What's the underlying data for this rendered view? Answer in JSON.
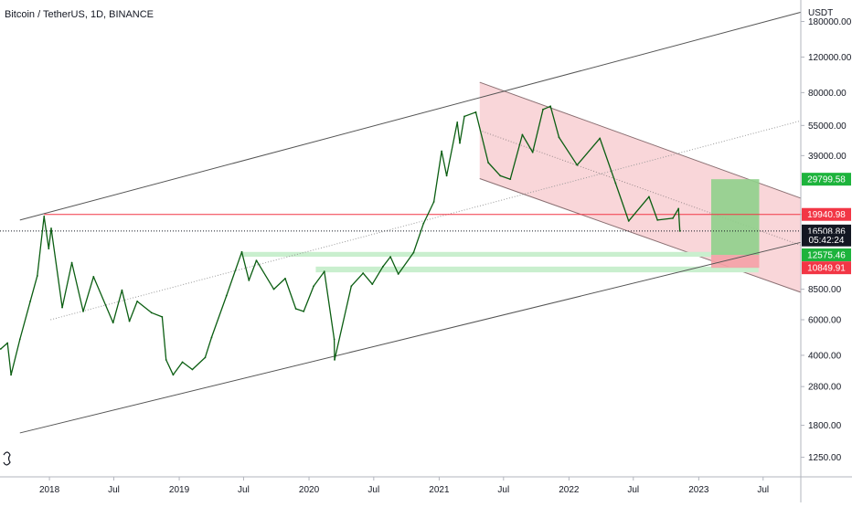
{
  "chart_data": {
    "type": "line",
    "title": "Bitcoin / TetherUS, 1D, BINANCE",
    "y_unit": "USDT",
    "y_scale": "log",
    "ylim": [
      1000,
      230000
    ],
    "xlim": [
      "2017-08-15",
      "2023-10-15"
    ],
    "grid": false,
    "y_ticks": [
      180000,
      120000,
      80000,
      55000,
      39000,
      19940.98,
      8500,
      6000,
      4000,
      2800,
      1800,
      1250
    ],
    "y_tick_labels": [
      "180000.00",
      "120000.00",
      "80000.00",
      "55000.00",
      "39000.00",
      "19940.98",
      "8500.00",
      "6000.00",
      "4000.00",
      "2800.00",
      "1800.00",
      "1250.00"
    ],
    "x_ticks": [
      {
        "date": "2018-01-01",
        "label": "2018"
      },
      {
        "date": "2018-07-01",
        "label": "Jul"
      },
      {
        "date": "2019-01-01",
        "label": "2019"
      },
      {
        "date": "2019-07-01",
        "label": "Jul"
      },
      {
        "date": "2020-01-01",
        "label": "2020"
      },
      {
        "date": "2020-07-01",
        "label": "Jul"
      },
      {
        "date": "2021-01-01",
        "label": "2021"
      },
      {
        "date": "2021-07-01",
        "label": "Jul"
      },
      {
        "date": "2022-01-01",
        "label": "2022"
      },
      {
        "date": "2022-07-01",
        "label": "Jul"
      },
      {
        "date": "2023-01-01",
        "label": "2023"
      },
      {
        "date": "2023-07-01",
        "label": "Jul"
      }
    ],
    "series": [
      {
        "color": "#0b5e12",
        "points": [
          [
            "2017-08-17",
            4300
          ],
          [
            "2017-09-05",
            4600
          ],
          [
            "2017-09-15",
            3200
          ],
          [
            "2017-10-10",
            4800
          ],
          [
            "2017-11-08",
            7400
          ],
          [
            "2017-11-28",
            9900
          ],
          [
            "2017-12-17",
            19500
          ],
          [
            "2017-12-30",
            13500
          ],
          [
            "2018-01-06",
            17000
          ],
          [
            "2018-02-06",
            6900
          ],
          [
            "2018-03-05",
            11500
          ],
          [
            "2018-04-06",
            6600
          ],
          [
            "2018-05-05",
            9800
          ],
          [
            "2018-06-29",
            5800
          ],
          [
            "2018-07-24",
            8400
          ],
          [
            "2018-08-14",
            5900
          ],
          [
            "2018-09-05",
            7400
          ],
          [
            "2018-10-15",
            6500
          ],
          [
            "2018-11-14",
            6200
          ],
          [
            "2018-11-25",
            3800
          ],
          [
            "2018-12-15",
            3200
          ],
          [
            "2019-01-10",
            3700
          ],
          [
            "2019-02-07",
            3400
          ],
          [
            "2019-03-15",
            3900
          ],
          [
            "2019-04-02",
            4900
          ],
          [
            "2019-05-14",
            7900
          ],
          [
            "2019-06-26",
            13000
          ],
          [
            "2019-07-16",
            9400
          ],
          [
            "2019-08-06",
            11800
          ],
          [
            "2019-09-24",
            8500
          ],
          [
            "2019-10-26",
            9600
          ],
          [
            "2019-11-25",
            6800
          ],
          [
            "2019-12-17",
            6600
          ],
          [
            "2020-01-14",
            8800
          ],
          [
            "2020-02-13",
            10400
          ],
          [
            "2020-03-12",
            4800
          ],
          [
            "2020-03-13",
            3800
          ],
          [
            "2020-04-29",
            8800
          ],
          [
            "2020-06-01",
            10200
          ],
          [
            "2020-06-27",
            9000
          ],
          [
            "2020-07-27",
            11000
          ],
          [
            "2020-08-17",
            12300
          ],
          [
            "2020-09-08",
            10100
          ],
          [
            "2020-10-21",
            12900
          ],
          [
            "2020-11-18",
            18000
          ],
          [
            "2020-12-17",
            23000
          ],
          [
            "2021-01-08",
            41000
          ],
          [
            "2021-01-22",
            31000
          ],
          [
            "2021-02-21",
            57000
          ],
          [
            "2021-02-28",
            45000
          ],
          [
            "2021-03-13",
            61000
          ],
          [
            "2021-04-14",
            64000
          ],
          [
            "2021-05-19",
            36000
          ],
          [
            "2021-06-22",
            31000
          ],
          [
            "2021-07-20",
            29800
          ],
          [
            "2021-08-23",
            49500
          ],
          [
            "2021-09-21",
            40500
          ],
          [
            "2021-10-20",
            66000
          ],
          [
            "2021-11-10",
            68500
          ],
          [
            "2021-12-04",
            48000
          ],
          [
            "2022-01-24",
            35000
          ],
          [
            "2022-03-29",
            47500
          ],
          [
            "2022-05-12",
            28500
          ],
          [
            "2022-06-18",
            18500
          ],
          [
            "2022-08-14",
            24400
          ],
          [
            "2022-09-07",
            18700
          ],
          [
            "2022-10-20",
            19100
          ],
          [
            "2022-11-05",
            21300
          ],
          [
            "2022-11-09",
            16508.86
          ]
        ]
      }
    ],
    "price_badges": [
      {
        "label": "29799.58",
        "value": 29799.58,
        "color": "#1db33c"
      },
      {
        "label": "19940.98",
        "value": 19940.98,
        "color": "#f23645"
      },
      {
        "label": "16508.86",
        "value": 16508.86,
        "color": "#131722"
      },
      {
        "label": "05:42:24",
        "value": 14900,
        "color": "#131722"
      },
      {
        "label": "12575.46",
        "value": 12575.46,
        "color": "#1db33c"
      },
      {
        "label": "10849.91",
        "value": 10849.91,
        "color": "#f23645"
      }
    ],
    "trend_lines": [
      {
        "from": [
          "2017-10-10",
          18700
        ],
        "to": [
          "2023-10-15",
          200000
        ],
        "color": "#555555"
      },
      {
        "from": [
          "2017-10-10",
          1650
        ],
        "to": [
          "2023-10-15",
          14500
        ],
        "color": "#555555"
      },
      {
        "from": [
          "2018-01-04",
          6000
        ],
        "to": [
          "2023-10-15",
          58000
        ],
        "color": "#999999",
        "dotted": true
      }
    ],
    "channel": {
      "upper": [
        [
          "2021-04-25",
          90000
        ],
        [
          "2023-10-15",
          24000
        ]
      ],
      "lower": [
        [
          "2021-04-25",
          30000
        ],
        [
          "2023-10-15",
          8200
        ]
      ],
      "fill": "#f7c8cc"
    },
    "horizontal_lines": [
      {
        "value": 19940.98,
        "from": "2017-12-17",
        "color": "#f23645"
      },
      {
        "value": 16508.86,
        "from": "2017-08-15",
        "color": "#131722",
        "dotted": true
      }
    ],
    "zones": [
      {
        "from": "2019-06-25",
        "to": "2023-06-18",
        "high": 13000,
        "low": 12300,
        "color": "#c9efce"
      },
      {
        "from": "2020-01-20",
        "to": "2023-06-18",
        "high": 11000,
        "low": 10300,
        "color": "#c9efce"
      }
    ],
    "position_box": {
      "from": "2023-02-05",
      "to": "2023-06-20",
      "target": 29799.58,
      "entry": 12575.46,
      "stop": 10849.91,
      "profit_color": "#8fd08b",
      "loss_color": "#f4a1a6"
    }
  }
}
